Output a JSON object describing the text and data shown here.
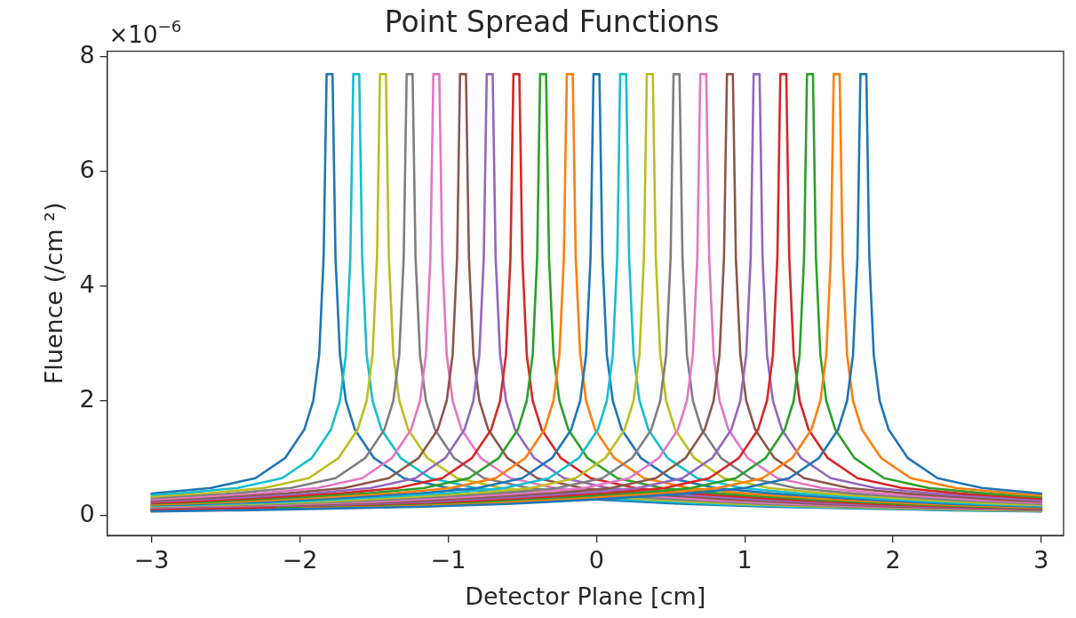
{
  "chart_data": {
    "type": "line",
    "title": "Point Spread Functions",
    "xlabel": "Detector Plane [cm]",
    "ylabel": "Fluence (/cm ²)",
    "annotations": [
      "×10$^{−6}$"
    ],
    "xlim": [
      -3.3,
      3.15
    ],
    "xticks": [
      {
        "value": -3,
        "label": "−3"
      },
      {
        "value": -2,
        "label": "−2"
      },
      {
        "value": -1,
        "label": "−1"
      },
      0,
      1,
      2,
      3
    ],
    "ylim": [
      -0.35,
      8.1
    ],
    "yticks": [
      0,
      2,
      4,
      6,
      8
    ],
    "grid": false,
    "legend": false,
    "marker": "none",
    "line_style": "solid",
    "series": [
      {
        "color": "#1f77b4",
        "x": [
          -3,
          -2.4,
          -1.8,
          -1.2,
          -0.6,
          0,
          0.6,
          1.0,
          1.3,
          1.5,
          1.63,
          1.69,
          1.73,
          1.76,
          1.78,
          1.82,
          1.84,
          1.87,
          1.91,
          1.97,
          2.1,
          2.3,
          2.6,
          3
        ],
        "values": [
          0.07,
          0.09,
          0.12,
          0.15,
          0.2,
          0.28,
          0.38,
          0.48,
          0.65,
          1.0,
          1.5,
          2.0,
          2.8,
          4.5,
          7.7,
          7.7,
          4.5,
          2.8,
          2.0,
          1.5,
          1.0,
          0.65,
          0.48,
          0.38
        ]
      },
      {
        "color": "#ff7f0e",
        "x": [
          -1.98,
          -1.38,
          -0.78,
          -0.18,
          0.42,
          0.82,
          1.12,
          1.32,
          1.45,
          1.51,
          1.55,
          1.58,
          1.6,
          1.64,
          1.66,
          1.69,
          1.73,
          1.79,
          1.92,
          2.12,
          2.42,
          2.82,
          3
        ],
        "values": [
          0.12,
          0.15,
          0.2,
          0.28,
          0.38,
          0.48,
          0.65,
          1.0,
          1.5,
          2.0,
          2.8,
          4.5,
          7.7,
          7.7,
          4.5,
          2.8,
          2.0,
          1.5,
          1.0,
          0.65,
          0.48,
          0.38,
          0.35
        ]
      },
      {
        "color": "#2ca02c",
        "x": [
          -2.16,
          -1.56,
          -0.96,
          -0.36,
          0.24,
          0.64,
          0.94,
          1.14,
          1.27,
          1.33,
          1.37,
          1.4,
          1.42,
          1.46,
          1.48,
          1.51,
          1.55,
          1.61,
          1.74,
          1.94,
          2.24,
          2.64,
          3
        ],
        "values": [
          0.12,
          0.15,
          0.2,
          0.28,
          0.38,
          0.48,
          0.65,
          1.0,
          1.5,
          2.0,
          2.8,
          4.5,
          7.7,
          7.7,
          4.5,
          2.8,
          2.0,
          1.5,
          1.0,
          0.65,
          0.48,
          0.38,
          0.32
        ]
      },
      {
        "color": "#d62728",
        "x": [
          -3,
          -2.34,
          -1.74,
          -1.14,
          -0.54,
          0.06,
          0.46,
          0.76,
          0.96,
          1.09,
          1.15,
          1.19,
          1.22,
          1.24,
          1.28,
          1.3,
          1.33,
          1.37,
          1.43,
          1.56,
          1.76,
          2.06,
          2.46,
          3
        ],
        "values": [
          0.09,
          0.12,
          0.15,
          0.2,
          0.28,
          0.38,
          0.48,
          0.65,
          1.0,
          1.5,
          2.0,
          2.8,
          4.5,
          7.7,
          7.7,
          4.5,
          2.8,
          2.0,
          1.5,
          1.0,
          0.65,
          0.48,
          0.38,
          0.29
        ]
      },
      {
        "color": "#9467bd",
        "x": [
          -3,
          -2.52,
          -1.92,
          -1.32,
          -0.72,
          -0.12,
          0.28,
          0.58,
          0.78,
          0.91,
          0.97,
          1.01,
          1.04,
          1.06,
          1.1,
          1.12,
          1.15,
          1.19,
          1.25,
          1.38,
          1.58,
          1.88,
          2.28,
          2.88,
          3
        ],
        "values": [
          0.1,
          0.12,
          0.15,
          0.2,
          0.28,
          0.38,
          0.48,
          0.65,
          1.0,
          1.5,
          2.0,
          2.8,
          4.5,
          7.7,
          7.7,
          4.5,
          2.8,
          2.0,
          1.5,
          1.0,
          0.65,
          0.48,
          0.38,
          0.28,
          0.26
        ]
      },
      {
        "color": "#8c564b",
        "x": [
          -3,
          -2.7,
          -2.1,
          -1.5,
          -0.9,
          -0.3,
          0.1,
          0.4,
          0.6,
          0.73,
          0.79,
          0.83,
          0.86,
          0.88,
          0.92,
          0.94,
          0.97,
          1.01,
          1.07,
          1.2,
          1.4,
          1.7,
          2.1,
          2.7,
          3
        ],
        "values": [
          0.1,
          0.12,
          0.15,
          0.2,
          0.28,
          0.38,
          0.48,
          0.65,
          1.0,
          1.5,
          2.0,
          2.8,
          4.5,
          7.7,
          7.7,
          4.5,
          2.8,
          2.0,
          1.5,
          1.0,
          0.65,
          0.48,
          0.38,
          0.28,
          0.24
        ]
      },
      {
        "color": "#e377c2",
        "x": [
          -3,
          -2.88,
          -2.28,
          -1.68,
          -1.08,
          -0.48,
          -0.08,
          0.22,
          0.42,
          0.55,
          0.61,
          0.65,
          0.68,
          0.7,
          0.74,
          0.76,
          0.79,
          0.83,
          0.89,
          1.02,
          1.22,
          1.52,
          1.92,
          2.52,
          3
        ],
        "values": [
          0.11,
          0.12,
          0.15,
          0.2,
          0.28,
          0.38,
          0.48,
          0.65,
          1.0,
          1.5,
          2.0,
          2.8,
          4.5,
          7.7,
          7.7,
          4.5,
          2.8,
          2.0,
          1.5,
          1.0,
          0.65,
          0.48,
          0.38,
          0.28,
          0.22
        ]
      },
      {
        "color": "#7f7f7f",
        "x": [
          -3,
          -2.46,
          -1.86,
          -1.26,
          -0.66,
          -0.26,
          0.04,
          0.24,
          0.37,
          0.43,
          0.47,
          0.5,
          0.52,
          0.56,
          0.58,
          0.61,
          0.65,
          0.71,
          0.84,
          1.04,
          1.34,
          1.74,
          2.34,
          3
        ],
        "values": [
          0.12,
          0.15,
          0.2,
          0.28,
          0.38,
          0.48,
          0.65,
          1.0,
          1.5,
          2.0,
          2.8,
          4.5,
          7.7,
          7.7,
          4.5,
          2.8,
          2.0,
          1.5,
          1.0,
          0.65,
          0.48,
          0.38,
          0.28,
          0.2
        ]
      },
      {
        "color": "#bcbd22",
        "x": [
          -3,
          -2.64,
          -2.04,
          -1.44,
          -0.84,
          -0.44,
          -0.14,
          0.06,
          0.19,
          0.25,
          0.29,
          0.32,
          0.34,
          0.38,
          0.4,
          0.43,
          0.47,
          0.53,
          0.66,
          0.86,
          1.16,
          1.56,
          2.16,
          2.76,
          3
        ],
        "values": [
          0.13,
          0.15,
          0.2,
          0.28,
          0.38,
          0.48,
          0.65,
          1.0,
          1.5,
          2.0,
          2.8,
          4.5,
          7.7,
          7.7,
          4.5,
          2.8,
          2.0,
          1.5,
          1.0,
          0.65,
          0.48,
          0.38,
          0.28,
          0.2,
          0.18
        ]
      },
      {
        "color": "#17becf",
        "x": [
          -3,
          -2.82,
          -2.22,
          -1.62,
          -1.02,
          -0.62,
          -0.32,
          -0.12,
          0.01,
          0.07,
          0.11,
          0.14,
          0.16,
          0.2,
          0.22,
          0.25,
          0.29,
          0.35,
          0.48,
          0.68,
          0.98,
          1.38,
          1.98,
          2.58,
          3
        ],
        "values": [
          0.14,
          0.15,
          0.2,
          0.28,
          0.38,
          0.48,
          0.65,
          1.0,
          1.5,
          2.0,
          2.8,
          4.5,
          7.7,
          7.7,
          4.5,
          2.8,
          2.0,
          1.5,
          1.0,
          0.65,
          0.48,
          0.38,
          0.28,
          0.2,
          0.17
        ]
      },
      {
        "color": "#1f77b4",
        "x": [
          -3,
          -2.4,
          -1.8,
          -1.2,
          -0.8,
          -0.5,
          -0.3,
          -0.17,
          -0.11,
          -0.07,
          -0.04,
          -0.02,
          0.02,
          0.04,
          0.07,
          0.11,
          0.17,
          0.3,
          0.5,
          0.8,
          1.2,
          1.8,
          2.4,
          3
        ],
        "values": [
          0.15,
          0.2,
          0.28,
          0.38,
          0.48,
          0.65,
          1.0,
          1.5,
          2.0,
          2.8,
          4.5,
          7.7,
          7.7,
          4.5,
          2.8,
          2.0,
          1.5,
          1.0,
          0.65,
          0.48,
          0.38,
          0.28,
          0.2,
          0.15
        ]
      },
      {
        "color": "#ff7f0e",
        "x": [
          -3,
          -2.58,
          -1.98,
          -1.38,
          -0.98,
          -0.68,
          -0.48,
          -0.35,
          -0.29,
          -0.25,
          -0.22,
          -0.2,
          -0.16,
          -0.14,
          -0.11,
          -0.07,
          -0.01,
          0.12,
          0.32,
          0.62,
          1.02,
          1.62,
          2.22,
          2.82,
          3
        ],
        "values": [
          0.17,
          0.2,
          0.28,
          0.38,
          0.48,
          0.65,
          1.0,
          1.5,
          2.0,
          2.8,
          4.5,
          7.7,
          7.7,
          4.5,
          2.8,
          2.0,
          1.5,
          1.0,
          0.65,
          0.48,
          0.38,
          0.28,
          0.2,
          0.15,
          0.14
        ]
      },
      {
        "color": "#2ca02c",
        "x": [
          -3,
          -2.76,
          -2.16,
          -1.56,
          -1.16,
          -0.86,
          -0.66,
          -0.53,
          -0.47,
          -0.43,
          -0.4,
          -0.38,
          -0.34,
          -0.32,
          -0.29,
          -0.25,
          -0.19,
          -0.06,
          0.14,
          0.44,
          0.84,
          1.44,
          2.04,
          2.64,
          3
        ],
        "values": [
          0.18,
          0.2,
          0.28,
          0.38,
          0.48,
          0.65,
          1.0,
          1.5,
          2.0,
          2.8,
          4.5,
          7.7,
          7.7,
          4.5,
          2.8,
          2.0,
          1.5,
          1.0,
          0.65,
          0.48,
          0.38,
          0.28,
          0.2,
          0.15,
          0.13
        ]
      },
      {
        "color": "#d62728",
        "x": [
          -3,
          -2.34,
          -1.74,
          -1.34,
          -1.04,
          -0.84,
          -0.71,
          -0.65,
          -0.61,
          -0.58,
          -0.56,
          -0.52,
          -0.5,
          -0.47,
          -0.43,
          -0.37,
          -0.24,
          -0.04,
          0.26,
          0.66,
          1.26,
          1.86,
          2.46,
          3
        ],
        "values": [
          0.2,
          0.28,
          0.38,
          0.48,
          0.65,
          1.0,
          1.5,
          2.0,
          2.8,
          4.5,
          7.7,
          7.7,
          4.5,
          2.8,
          2.0,
          1.5,
          1.0,
          0.65,
          0.48,
          0.38,
          0.28,
          0.2,
          0.15,
          0.12
        ]
      },
      {
        "color": "#9467bd",
        "x": [
          -3,
          -2.52,
          -1.92,
          -1.52,
          -1.22,
          -1.02,
          -0.89,
          -0.83,
          -0.79,
          -0.76,
          -0.74,
          -0.7,
          -0.68,
          -0.65,
          -0.61,
          -0.55,
          -0.42,
          -0.22,
          0.08,
          0.48,
          1.08,
          1.68,
          2.28,
          2.88,
          3
        ],
        "values": [
          0.22,
          0.28,
          0.38,
          0.48,
          0.65,
          1.0,
          1.5,
          2.0,
          2.8,
          4.5,
          7.7,
          7.7,
          4.5,
          2.8,
          2.0,
          1.5,
          1.0,
          0.65,
          0.48,
          0.38,
          0.28,
          0.2,
          0.15,
          0.12,
          0.11
        ]
      },
      {
        "color": "#8c564b",
        "x": [
          -3,
          -2.7,
          -2.1,
          -1.7,
          -1.4,
          -1.2,
          -1.07,
          -1.01,
          -0.97,
          -0.94,
          -0.92,
          -0.88,
          -0.86,
          -0.83,
          -0.79,
          -0.73,
          -0.6,
          -0.4,
          -0.1,
          0.3,
          0.9,
          1.5,
          2.1,
          2.7,
          3
        ],
        "values": [
          0.24,
          0.28,
          0.38,
          0.48,
          0.65,
          1.0,
          1.5,
          2.0,
          2.8,
          4.5,
          7.7,
          7.7,
          4.5,
          2.8,
          2.0,
          1.5,
          1.0,
          0.65,
          0.48,
          0.38,
          0.28,
          0.2,
          0.15,
          0.12,
          0.1
        ]
      },
      {
        "color": "#e377c2",
        "x": [
          -3,
          -2.88,
          -2.28,
          -1.88,
          -1.58,
          -1.38,
          -1.25,
          -1.19,
          -1.15,
          -1.12,
          -1.1,
          -1.06,
          -1.04,
          -1.01,
          -0.97,
          -0.91,
          -0.78,
          -0.58,
          -0.28,
          0.12,
          0.72,
          1.32,
          1.92,
          2.52,
          3
        ],
        "values": [
          0.26,
          0.28,
          0.38,
          0.48,
          0.65,
          1.0,
          1.5,
          2.0,
          2.8,
          4.5,
          7.7,
          7.7,
          4.5,
          2.8,
          2.0,
          1.5,
          1.0,
          0.65,
          0.48,
          0.38,
          0.28,
          0.2,
          0.15,
          0.12,
          0.1
        ]
      },
      {
        "color": "#7f7f7f",
        "x": [
          -3,
          -2.46,
          -2.06,
          -1.76,
          -1.56,
          -1.43,
          -1.37,
          -1.33,
          -1.3,
          -1.28,
          -1.24,
          -1.22,
          -1.19,
          -1.15,
          -1.09,
          -0.96,
          -0.76,
          -0.46,
          -0.06,
          0.54,
          1.14,
          1.74,
          2.34,
          3
        ],
        "values": [
          0.29,
          0.38,
          0.48,
          0.65,
          1.0,
          1.5,
          2.0,
          2.8,
          4.5,
          7.7,
          7.7,
          4.5,
          2.8,
          2.0,
          1.5,
          1.0,
          0.65,
          0.48,
          0.38,
          0.28,
          0.2,
          0.15,
          0.12,
          0.09
        ]
      },
      {
        "color": "#bcbd22",
        "x": [
          -3,
          -2.64,
          -2.24,
          -1.94,
          -1.74,
          -1.61,
          -1.55,
          -1.51,
          -1.48,
          -1.46,
          -1.42,
          -1.4,
          -1.37,
          -1.33,
          -1.27,
          -1.14,
          -0.94,
          -0.64,
          -0.24,
          0.36,
          0.96,
          1.56,
          2.16,
          2.76,
          3
        ],
        "values": [
          0.32,
          0.38,
          0.48,
          0.65,
          1.0,
          1.5,
          2.0,
          2.8,
          4.5,
          7.7,
          7.7,
          4.5,
          2.8,
          2.0,
          1.5,
          1.0,
          0.65,
          0.48,
          0.38,
          0.28,
          0.2,
          0.15,
          0.12,
          0.09,
          0.08
        ]
      },
      {
        "color": "#17becf",
        "x": [
          -3,
          -2.82,
          -2.42,
          -2.12,
          -1.92,
          -1.79,
          -1.73,
          -1.69,
          -1.66,
          -1.64,
          -1.6,
          -1.58,
          -1.55,
          -1.51,
          -1.45,
          -1.32,
          -1.12,
          -0.82,
          -0.42,
          0.18,
          0.78,
          1.38,
          1.98,
          2.58,
          3
        ],
        "values": [
          0.35,
          0.38,
          0.48,
          0.65,
          1.0,
          1.5,
          2.0,
          2.8,
          4.5,
          7.7,
          7.7,
          4.5,
          2.8,
          2.0,
          1.5,
          1.0,
          0.65,
          0.48,
          0.38,
          0.28,
          0.2,
          0.15,
          0.12,
          0.09,
          0.08
        ]
      },
      {
        "color": "#1f77b4",
        "x": [
          -3,
          -2.6,
          -2.3,
          -2.1,
          -1.97,
          -1.91,
          -1.87,
          -1.84,
          -1.82,
          -1.78,
          -1.76,
          -1.73,
          -1.69,
          -1.63,
          -1.5,
          -1.3,
          -1.0,
          -0.6,
          0,
          0.6,
          1.2,
          1.8,
          2.4,
          3
        ],
        "values": [
          0.38,
          0.48,
          0.65,
          1.0,
          1.5,
          2.0,
          2.8,
          4.5,
          7.7,
          7.7,
          4.5,
          2.8,
          2.0,
          1.5,
          1.0,
          0.65,
          0.48,
          0.38,
          0.28,
          0.2,
          0.15,
          0.12,
          0.09,
          0.07
        ]
      }
    ]
  }
}
